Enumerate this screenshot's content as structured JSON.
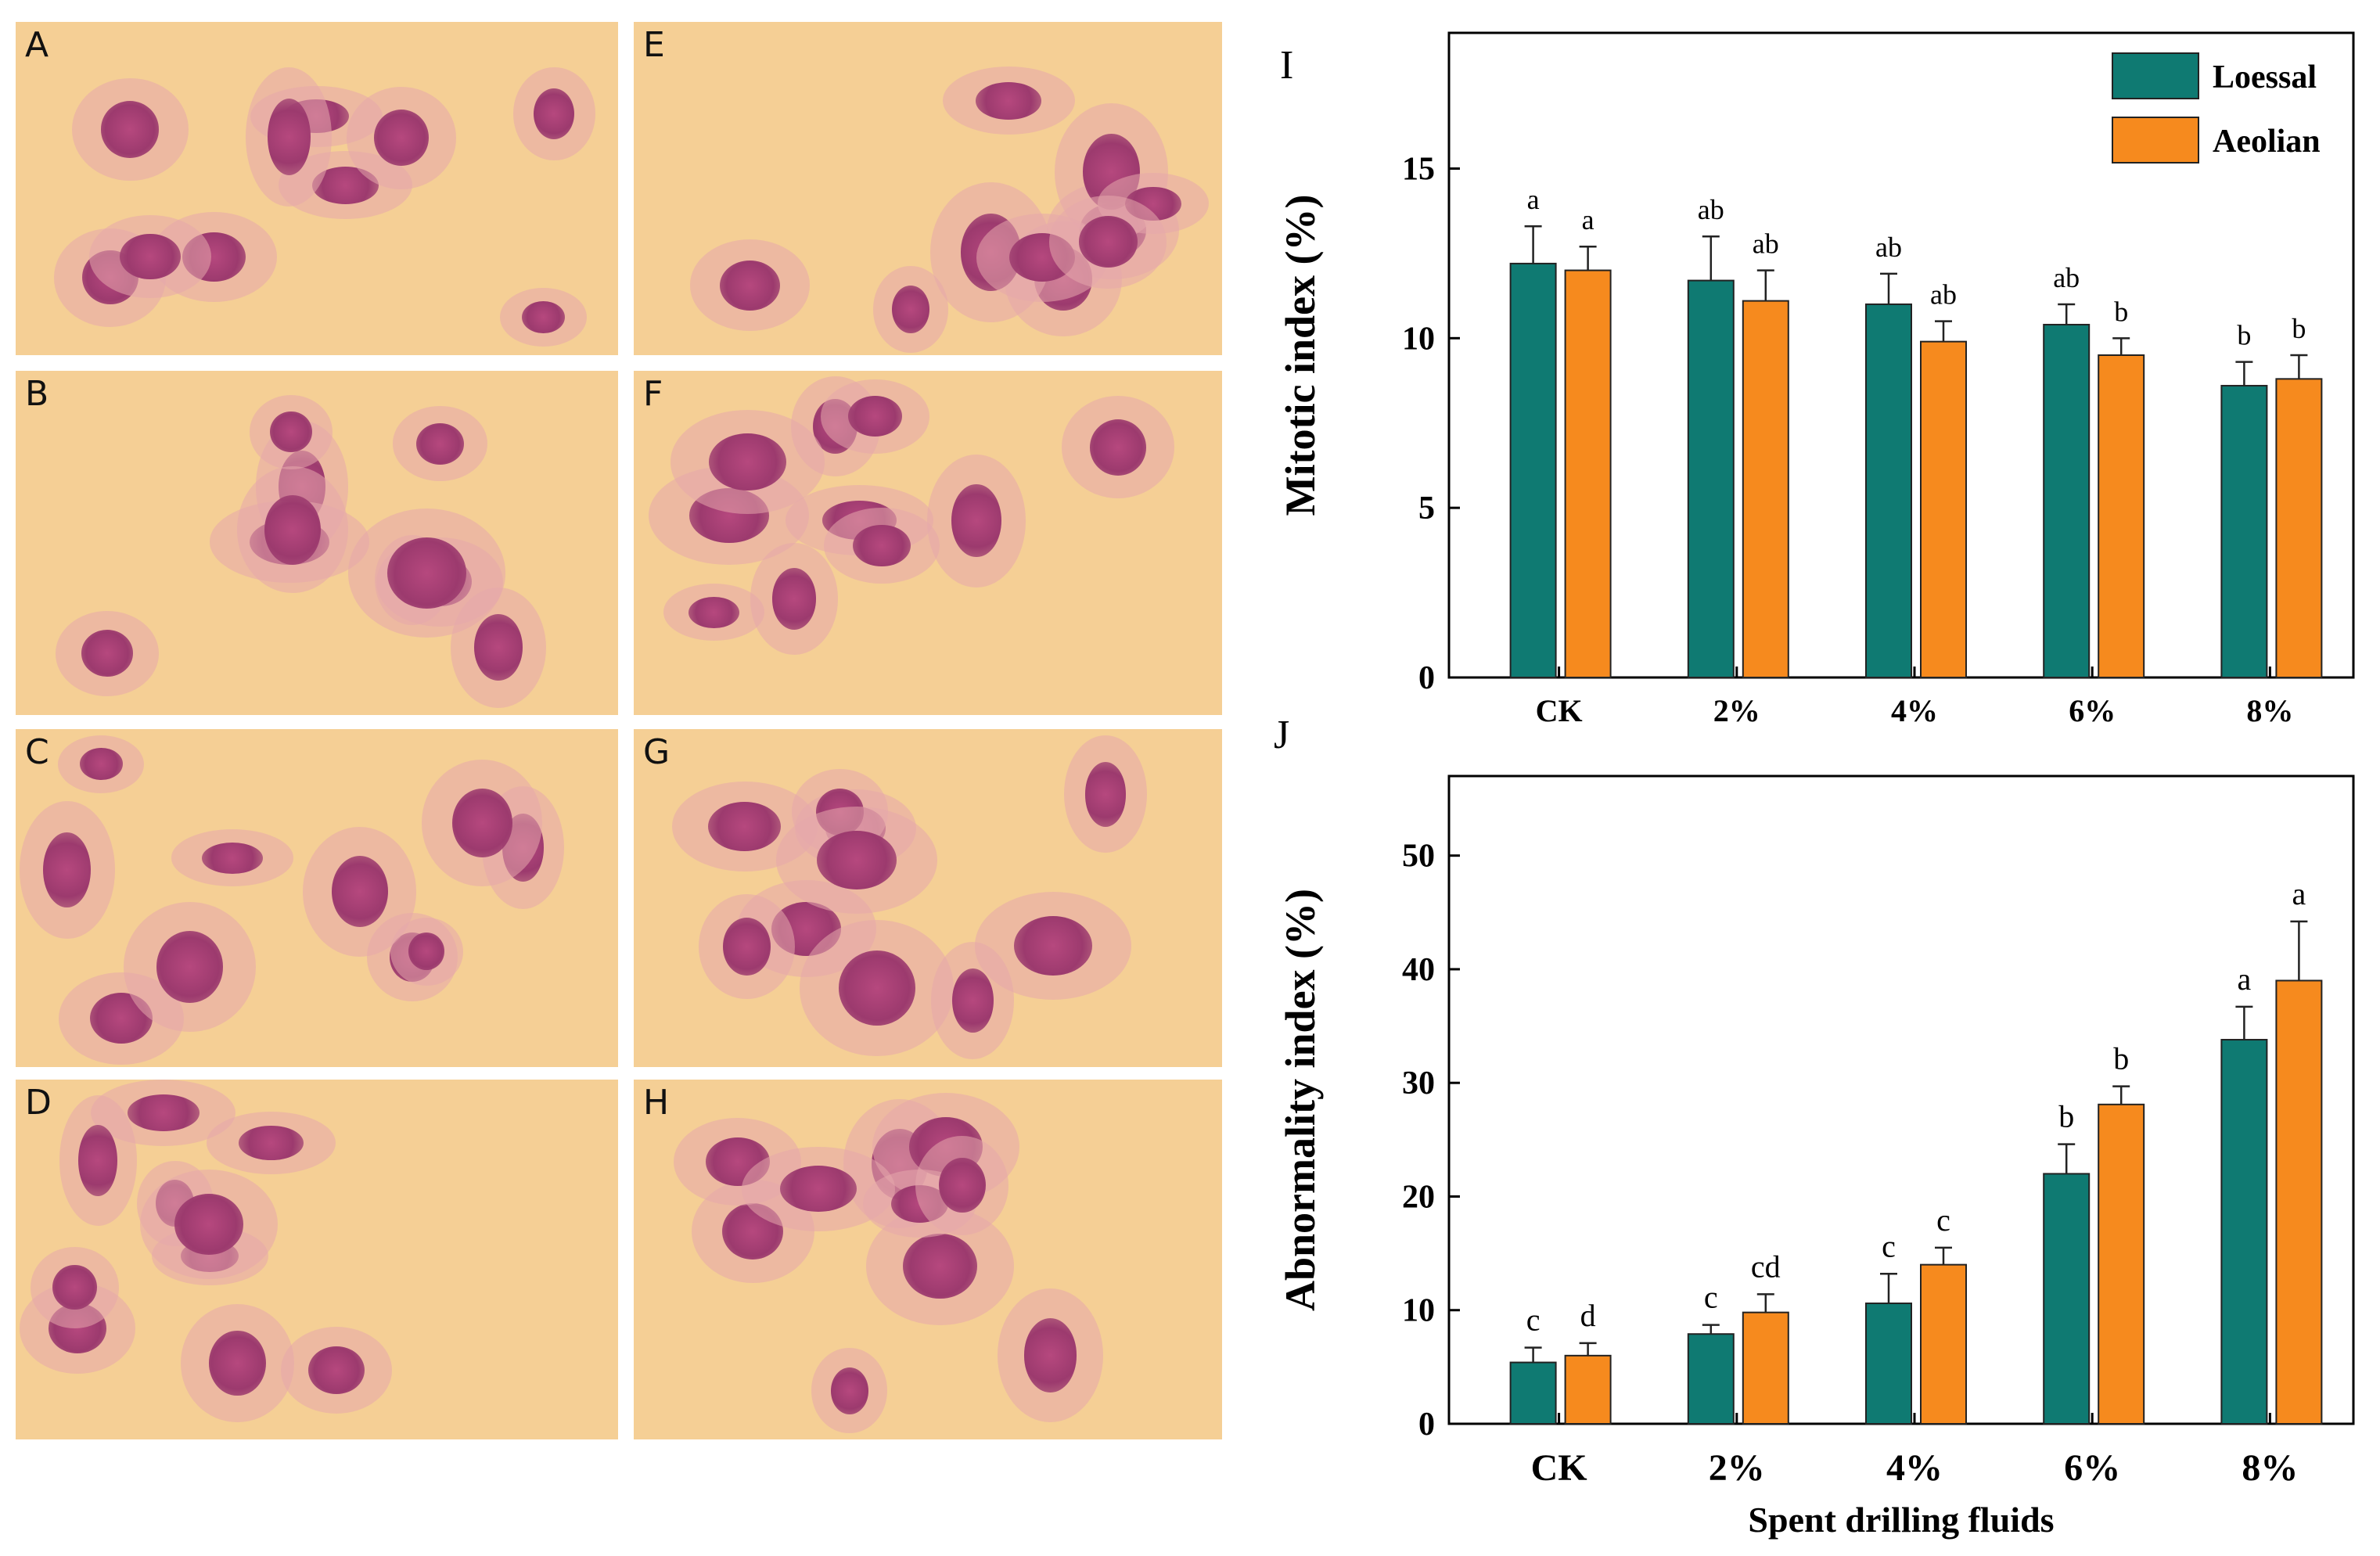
{
  "panels": [
    {
      "letter": "A"
    },
    {
      "letter": "B"
    },
    {
      "letter": "C"
    },
    {
      "letter": "D"
    },
    {
      "letter": "E"
    },
    {
      "letter": "F"
    },
    {
      "letter": "G"
    },
    {
      "letter": "H"
    }
  ],
  "colors": {
    "loessal": "#0f7a72",
    "aeolian": "#f68a1e",
    "background": "#f5cf95",
    "cytoplasm": "#e5a7ab",
    "nucleus": "#b6487e"
  },
  "chart_data": [
    {
      "panel_label": "I",
      "type": "bar",
      "categories": [
        "CK",
        "2%",
        "4%",
        "6%",
        "8%"
      ],
      "ylabel": "Mitotic index (%)",
      "ylim": [
        0,
        19
      ],
      "yticks": [
        "0",
        "5",
        "10",
        "15"
      ],
      "legend": {
        "position": "top-right",
        "entries": [
          "Loessal",
          "Aeolian"
        ]
      },
      "series": [
        {
          "name": "Loessal",
          "values": [
            12.2,
            11.7,
            11.0,
            10.4,
            8.6
          ],
          "errors": [
            1.1,
            1.3,
            0.9,
            0.6,
            0.7
          ],
          "labels": [
            "a",
            "ab",
            "ab",
            "ab",
            "b"
          ]
        },
        {
          "name": "Aeolian",
          "values": [
            12.0,
            11.1,
            9.9,
            9.5,
            8.8
          ],
          "errors": [
            0.7,
            0.9,
            0.6,
            0.5,
            0.7
          ],
          "labels": [
            "a",
            "ab",
            "ab",
            "b",
            "b"
          ]
        }
      ]
    },
    {
      "panel_label": "J",
      "type": "bar",
      "categories": [
        "CK",
        "2%",
        "4%",
        "6%",
        "8%"
      ],
      "xlabel": "Spent drilling fluids",
      "ylabel": "Abnormality index (%)",
      "ylim": [
        0,
        57
      ],
      "yticks": [
        "0",
        "10",
        "20",
        "30",
        "40",
        "50"
      ],
      "series": [
        {
          "name": "Loessal",
          "values": [
            5.4,
            7.9,
            10.6,
            22.0,
            33.8
          ],
          "errors": [
            1.3,
            0.8,
            2.6,
            2.6,
            2.9
          ],
          "labels": [
            "c",
            "c",
            "c",
            "b",
            "a"
          ]
        },
        {
          "name": "Aeolian",
          "values": [
            6.0,
            9.8,
            14.0,
            28.1,
            39.0
          ],
          "errors": [
            1.1,
            1.6,
            1.5,
            1.6,
            5.2
          ],
          "labels": [
            "d",
            "cd",
            "c",
            "b",
            "a"
          ]
        }
      ]
    }
  ]
}
